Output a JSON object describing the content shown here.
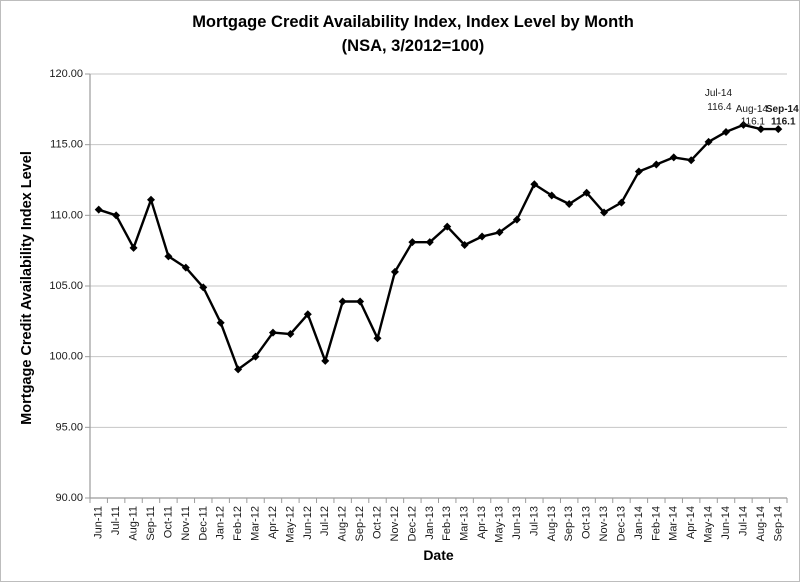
{
  "chart_data": {
    "type": "line",
    "title_line1": "Mortgage Credit Availability Index, Index Level by Month",
    "title_line2": "(NSA, 3/2012=100)",
    "xlabel": "Date",
    "ylabel": "Mortgage Credit Availability Index Level",
    "ylim": [
      90,
      120
    ],
    "ytick_step": 5,
    "ytick_labels": [
      "120.00",
      "115.00",
      "110.00",
      "105.00",
      "100.00",
      "95.00",
      "90.00"
    ],
    "grid": true,
    "legend": "none",
    "marker": "diamond",
    "categories": [
      "Jun-11",
      "Jul-11",
      "Aug-11",
      "Sep-11",
      "Oct-11",
      "Nov-11",
      "Dec-11",
      "Jan-12",
      "Feb-12",
      "Mar-12",
      "Apr-12",
      "May-12",
      "Jun-12",
      "Jul-12",
      "Aug-12",
      "Sep-12",
      "Oct-12",
      "Nov-12",
      "Dec-12",
      "Jan-13",
      "Feb-13",
      "Mar-13",
      "Apr-13",
      "May-13",
      "Jun-13",
      "Jul-13",
      "Aug-13",
      "Sep-13",
      "Oct-13",
      "Nov-13",
      "Dec-13",
      "Jan-14",
      "Feb-14",
      "Mar-14",
      "Apr-14",
      "May-14",
      "Jun-14",
      "Jul-14",
      "Aug-14",
      "Sep-14"
    ],
    "values": [
      110.4,
      110.0,
      107.7,
      111.1,
      107.1,
      106.3,
      104.9,
      102.4,
      99.1,
      100.0,
      101.7,
      101.6,
      103.0,
      99.7,
      103.9,
      103.9,
      101.3,
      106.0,
      108.1,
      108.1,
      109.2,
      107.9,
      108.5,
      108.8,
      109.7,
      112.2,
      111.4,
      110.8,
      111.6,
      110.2,
      110.9,
      113.1,
      113.6,
      114.1,
      113.9,
      115.2,
      115.9,
      116.4,
      116.1,
      116.1
    ],
    "annotations": [
      {
        "label": "Jul-14",
        "value": "116.4",
        "bold": false
      },
      {
        "label": "Aug-14",
        "value": "116.1",
        "bold": false
      },
      {
        "label": "Sep-14",
        "value": "116.1",
        "bold": true
      }
    ],
    "colors": {
      "line": "#000000",
      "marker": "#000000",
      "gridline": "#c6c6c6",
      "axis": "#9b9b9b",
      "tick_text": "#1a1a1a",
      "title_text": "#000000",
      "frame_border": "#bdbdbd"
    }
  }
}
